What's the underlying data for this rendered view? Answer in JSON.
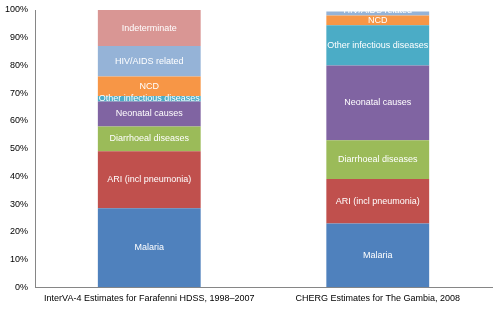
{
  "chart_data": {
    "type": "bar",
    "stacked": true,
    "grid": false,
    "categories": [
      "InterVA-4 Estimates for Farafenni HDSS, 1998–2007",
      "CHERG Estimates for The Gambia, 2008"
    ],
    "series": [
      {
        "name": "Malaria",
        "color": "#4f81bd",
        "values": [
          28.5,
          23
        ]
      },
      {
        "name": "ARI (incl pneumonia)",
        "color": "#c0504d",
        "values": [
          20.5,
          16
        ]
      },
      {
        "name": "Diarrhoeal diseases",
        "color": "#9bbb59",
        "values": [
          9,
          14
        ]
      },
      {
        "name": "Neonatal causes",
        "color": "#8064a2",
        "values": [
          9,
          27
        ]
      },
      {
        "name": "Other infectious diseases",
        "color": "#4bacc6",
        "values": [
          2,
          14.5
        ]
      },
      {
        "name": "NCD",
        "color": "#f79646",
        "values": [
          7,
          3.5
        ]
      },
      {
        "name": "HIV/AIDS related",
        "color": "#95b3d7",
        "values": [
          11,
          1.5
        ]
      },
      {
        "name": "Indeterminate",
        "color": "#d99694",
        "values": [
          13,
          0
        ]
      }
    ],
    "ylim": [
      0,
      100
    ],
    "yticks": [
      {
        "value": 0,
        "label": "0%"
      },
      {
        "value": 10,
        "label": "10%"
      },
      {
        "value": 20,
        "label": "20%"
      },
      {
        "value": 30,
        "label": "30%"
      },
      {
        "value": 40,
        "label": "40%"
      },
      {
        "value": 50,
        "label": "50%"
      },
      {
        "value": 60,
        "label": "60%"
      },
      {
        "value": 70,
        "label": "70%"
      },
      {
        "value": 80,
        "label": "80%"
      },
      {
        "value": 90,
        "label": "90%"
      },
      {
        "value": 100,
        "label": "100%"
      }
    ]
  }
}
